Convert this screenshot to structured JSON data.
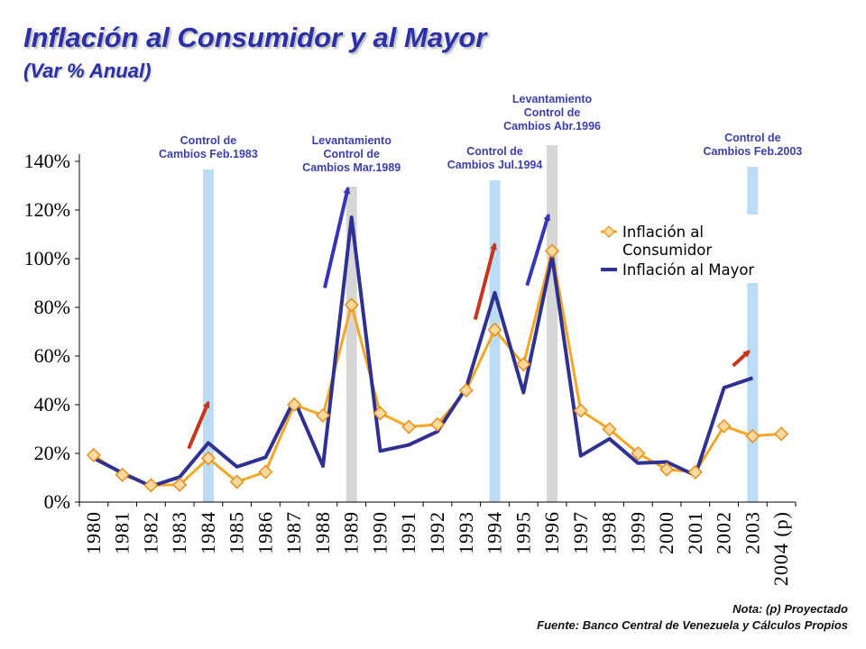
{
  "header": {
    "title": "Inflación al Consumidor y al Mayor",
    "subtitle": "(Var % Anual)"
  },
  "footer": {
    "note": "Nota: (p) Proyectado",
    "source": "Fuente: Banco Central de Venezuela y Cálculos Propios"
  },
  "chart_data": {
    "type": "line",
    "x": [
      "1980",
      "1981",
      "1982",
      "1983",
      "1984",
      "1985",
      "1986",
      "1987",
      "1988",
      "1989",
      "1990",
      "1991",
      "1992",
      "1993",
      "1994",
      "1995",
      "1996",
      "1997",
      "1998",
      "1999",
      "2000",
      "2001",
      "2002",
      "2003",
      "2004 (p)"
    ],
    "ylim": [
      0,
      140
    ],
    "yticks": [
      0,
      20,
      40,
      60,
      80,
      100,
      120,
      140
    ],
    "ytick_labels": [
      "0%",
      "20%",
      "40%",
      "60%",
      "80%",
      "100%",
      "120%",
      "140%"
    ],
    "grid": false,
    "legend": "right",
    "series": [
      {
        "name": "Inflación al Consumidor",
        "color": "#f5a623",
        "marker": "diamond",
        "values": [
          19.3,
          11.2,
          6.9,
          7.1,
          18.0,
          8.3,
          12.4,
          40.0,
          35.6,
          81.0,
          36.5,
          30.9,
          31.9,
          45.9,
          70.8,
          56.6,
          103.2,
          37.6,
          29.9,
          20.0,
          13.4,
          12.3,
          31.2,
          27.1,
          28.0
        ]
      },
      {
        "name": "Inflación al Mayor",
        "color": "#2e3192",
        "marker": "none",
        "values": [
          18.0,
          12.0,
          6.5,
          10.3,
          24.3,
          14.5,
          18.4,
          42.0,
          14.8,
          117.0,
          21.0,
          23.5,
          29.0,
          47.0,
          86.0,
          45.0,
          101.0,
          19.0,
          26.0,
          16.0,
          16.5,
          11.0,
          47.0,
          51.0,
          null
        ]
      }
    ],
    "event_bands": [
      {
        "label": "Control de Cambios Feb.1983",
        "year": "1984",
        "color": "#bcdcf6"
      },
      {
        "label": "Levantamiento Control de Cambios Mar.1989",
        "year": "1989",
        "color": "#d6d6d6"
      },
      {
        "label": "Control de Cambios Jul.1994",
        "year": "1994",
        "color": "#bcdcf6"
      },
      {
        "label": "Levantamiento Control de Cambios Abr.1996",
        "year": "1996",
        "color": "#d6d6d6"
      },
      {
        "label": "Control de Cambios Feb.2003",
        "year": "2003",
        "color": "#bcdcf6"
      }
    ],
    "annotation_arrows": [
      {
        "name": "arrow-1984",
        "from": [
          "1983",
          22
        ],
        "to": [
          "1984",
          41
        ],
        "color": "#c8341c"
      },
      {
        "name": "arrow-1989",
        "from": [
          "1988",
          88
        ],
        "to": [
          "1989",
          129
        ],
        "color": "#3535b8"
      },
      {
        "name": "arrow-1994",
        "from": [
          "1993",
          75
        ],
        "to": [
          "1994",
          106
        ],
        "color": "#c8341c"
      },
      {
        "name": "arrow-1996",
        "from": [
          "1995",
          89
        ],
        "to": [
          "1996",
          118
        ],
        "color": "#3535b8"
      },
      {
        "name": "arrow-2003",
        "from": [
          "2002",
          56
        ],
        "to": [
          "2003",
          62
        ],
        "color": "#c8341c"
      }
    ]
  }
}
